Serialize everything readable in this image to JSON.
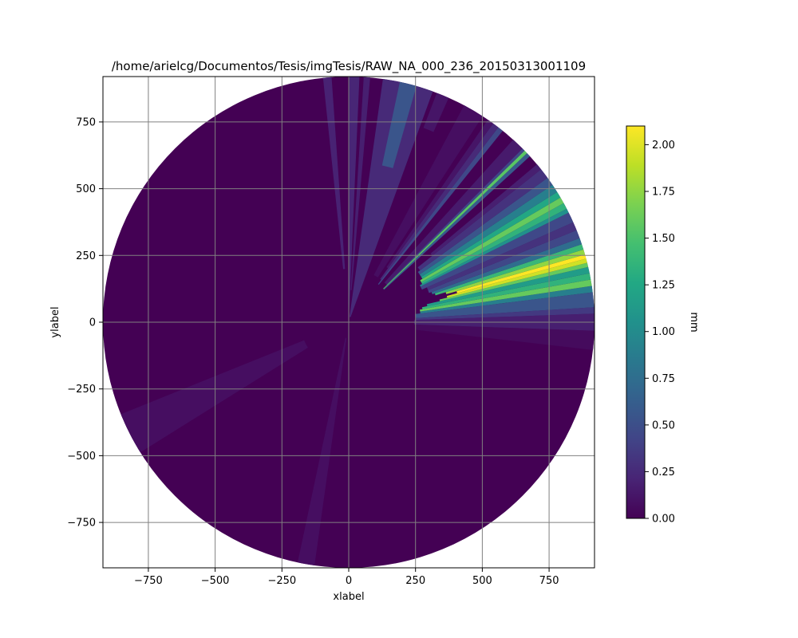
{
  "chart_data": {
    "type": "heatmap",
    "title": "/home/arielcg/Documentos/Tesis/imgTesis/RAW_NA_000_236_20150313001109",
    "xlabel": "xlabel",
    "ylabel": "ylabel",
    "xlim": [
      -920,
      920
    ],
    "ylim": [
      -920,
      920
    ],
    "radius": 920,
    "grid": true,
    "x_ticks": [
      -750,
      -500,
      -250,
      0,
      250,
      500,
      750
    ],
    "x_tick_labels": [
      "−750",
      "−500",
      "−250",
      "0",
      "250",
      "500",
      "750"
    ],
    "y_ticks": [
      750,
      500,
      250,
      0,
      -250,
      -500,
      -750
    ],
    "y_tick_labels": [
      "750",
      "500",
      "250",
      "0",
      "−250",
      "−500",
      "−750"
    ],
    "colorbar": {
      "label": "mm",
      "range": [
        0,
        2.1
      ],
      "ticks": [
        0,
        0.25,
        0.5,
        0.75,
        1.0,
        1.25,
        1.5,
        1.75,
        2.0
      ],
      "tick_labels": [
        "0.00",
        "0.25",
        "0.50",
        "0.75",
        "1.00",
        "1.25",
        "1.50",
        "1.75",
        "2.00"
      ],
      "colormap": "viridis"
    },
    "background_value": 0.0,
    "sectors": [
      {
        "az0": 0.0,
        "az1": 2.5,
        "r0": 40,
        "r1": 920,
        "value": 0.22
      },
      {
        "az0": 3.5,
        "az1": 5.0,
        "r0": 120,
        "r1": 920,
        "value": 0.18
      },
      {
        "az0": 8.0,
        "az1": 20.0,
        "r0": 20,
        "r1": 920,
        "value": 0.25
      },
      {
        "az0": 12.0,
        "az1": 16.0,
        "r0": 600,
        "r1": 920,
        "value": 0.55
      },
      {
        "az0": 21.0,
        "az1": 24.0,
        "r0": 780,
        "r1": 920,
        "value": 0.12
      },
      {
        "az0": 92.0,
        "az1": 96.5,
        "r0": 250,
        "r1": 920,
        "value": 0.06
      },
      {
        "az0": 88.0,
        "az1": 92.0,
        "r0": 245,
        "r1": 920,
        "value": 0.18
      },
      {
        "az0": 86.5,
        "az1": 88.0,
        "r0": 250,
        "r1": 920,
        "value": 0.35
      },
      {
        "az0": 83.0,
        "az1": 86.5,
        "r0": 250,
        "r1": 920,
        "value": 0.55
      },
      {
        "az0": 81.5,
        "az1": 83.0,
        "r0": 270,
        "r1": 920,
        "value": 0.9
      },
      {
        "az0": 80.0,
        "az1": 81.5,
        "r0": 270,
        "r1": 920,
        "value": 1.6
      },
      {
        "az0": 78.5,
        "az1": 80.0,
        "r0": 280,
        "r1": 920,
        "value": 1.35
      },
      {
        "az0": 77.0,
        "az1": 78.5,
        "r0": 300,
        "r1": 920,
        "value": 1.15
      },
      {
        "az0": 76.0,
        "az1": 77.0,
        "r0": 350,
        "r1": 920,
        "value": 1.6
      },
      {
        "az0": 75.0,
        "az1": 76.0,
        "r0": 380,
        "r1": 920,
        "value": 1.95
      },
      {
        "az0": 74.0,
        "az1": 75.0,
        "r0": 420,
        "r1": 920,
        "value": 2.1
      },
      {
        "az0": 72.8,
        "az1": 74.0,
        "r0": 380,
        "r1": 920,
        "value": 1.75
      },
      {
        "az0": 71.5,
        "az1": 72.8,
        "r0": 340,
        "r1": 920,
        "value": 1.4
      },
      {
        "az0": 70.0,
        "az1": 71.5,
        "r0": 330,
        "r1": 920,
        "value": 0.75
      },
      {
        "az0": 68.0,
        "az1": 70.0,
        "r0": 320,
        "r1": 920,
        "value": 0.45
      },
      {
        "az0": 66.0,
        "az1": 68.0,
        "r0": 320,
        "r1": 920,
        "value": 0.3
      },
      {
        "az0": 63.5,
        "az1": 66.0,
        "r0": 300,
        "r1": 920,
        "value": 0.45
      },
      {
        "az0": 62.5,
        "az1": 63.5,
        "r0": 300,
        "r1": 920,
        "value": 1.05
      },
      {
        "az0": 61.0,
        "az1": 62.5,
        "r0": 310,
        "r1": 920,
        "value": 1.35
      },
      {
        "az0": 59.5,
        "az1": 61.0,
        "r0": 310,
        "r1": 920,
        "value": 1.6
      },
      {
        "az0": 58.0,
        "az1": 59.5,
        "r0": 320,
        "r1": 920,
        "value": 1.25
      },
      {
        "az0": 56.0,
        "az1": 58.0,
        "r0": 320,
        "r1": 920,
        "value": 0.9
      },
      {
        "az0": 54.0,
        "az1": 56.0,
        "r0": 320,
        "r1": 920,
        "value": 0.55
      },
      {
        "az0": 51.5,
        "az1": 54.0,
        "r0": 330,
        "r1": 920,
        "value": 0.3
      },
      {
        "az0": 50.0,
        "az1": 51.5,
        "r0": 400,
        "r1": 920,
        "value": 0.18
      },
      {
        "az0": 46.5,
        "az1": 47.5,
        "r0": 180,
        "r1": 920,
        "value": 0.6
      },
      {
        "az0": 45.7,
        "az1": 46.5,
        "r0": 180,
        "r1": 920,
        "value": 1.55
      },
      {
        "az0": 45.0,
        "az1": 45.7,
        "r0": 200,
        "r1": 920,
        "value": 0.45
      },
      {
        "az0": 42.0,
        "az1": 45.0,
        "r0": 200,
        "r1": 920,
        "value": 0.15
      },
      {
        "az0": 37.5,
        "az1": 38.8,
        "r0": 180,
        "r1": 920,
        "value": 0.45
      },
      {
        "az0": 36.0,
        "az1": 37.5,
        "r0": 200,
        "r1": 920,
        "value": 0.25
      },
      {
        "az0": 34.5,
        "az1": 36.0,
        "r0": 250,
        "r1": 920,
        "value": 0.12
      },
      {
        "az0": 28.0,
        "az1": 33.0,
        "r0": 200,
        "r1": 920,
        "value": 0.08
      },
      {
        "az0": 188.0,
        "az1": 192.0,
        "r0": 60,
        "r1": 920,
        "value": 0.08
      },
      {
        "az0": 238.0,
        "az1": 248.0,
        "r0": 180,
        "r1": 920,
        "value": 0.08
      },
      {
        "az0": 354.0,
        "az1": 356.0,
        "r0": 200,
        "r1": 920,
        "value": 0.2
      }
    ]
  }
}
